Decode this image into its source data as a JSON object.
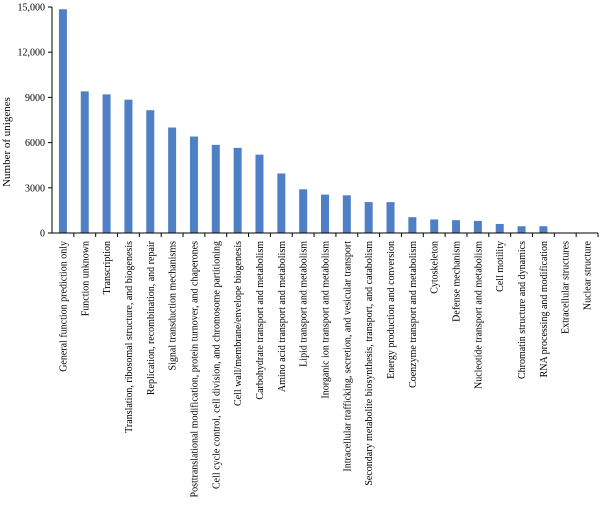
{
  "chart_data": {
    "type": "bar",
    "title": "",
    "xlabel": "",
    "ylabel": "Number of unigenes",
    "ylim": [
      0,
      15000
    ],
    "yticks": [
      0,
      3000,
      6000,
      9000,
      12000,
      15000
    ],
    "ytick_labels": [
      "0",
      "3000",
      "6000",
      "9000",
      "12,000",
      "15,000"
    ],
    "grid": false,
    "bar_color": "#4f7fc4",
    "categories": [
      "General function prediction only",
      "Function unknown",
      "Transcription",
      "Translation, ribosomal structure, and biogenesis",
      "Replication, recombination, and repair",
      "Signal transduction mechanisms",
      "Posttranslational modification, protein turnover, and chaperones",
      "Cell cycle control, cell division, and chromosome partitioning",
      "Cell wall/membrane/envelope biogenesis",
      "Carbohydrate transport and metabolism",
      "Amino acid transport and metabolism",
      "Lipid transport and metabolism",
      "Inorganic ion transport and metabolism",
      "Intracellular trafficking, secretion, and vesicular transport",
      "Secondary metabolite biosynthesis, transport, and catabolism",
      "Energy production and conversion",
      "Coenzyme transport and metabolism",
      "Cytoskeleton",
      "Defense mechanism",
      "Nucleotide transport and metabolism",
      "Cell motility",
      "Chromatin structure and dynamics",
      "RNA processing and modification",
      "Extracellular structures",
      "Nuclear structure"
    ],
    "values": [
      14850,
      9400,
      9200,
      8850,
      8150,
      7000,
      6400,
      5850,
      5650,
      5200,
      3950,
      2900,
      2550,
      2500,
      2050,
      2050,
      1050,
      900,
      850,
      800,
      600,
      450,
      450,
      30,
      20
    ]
  }
}
